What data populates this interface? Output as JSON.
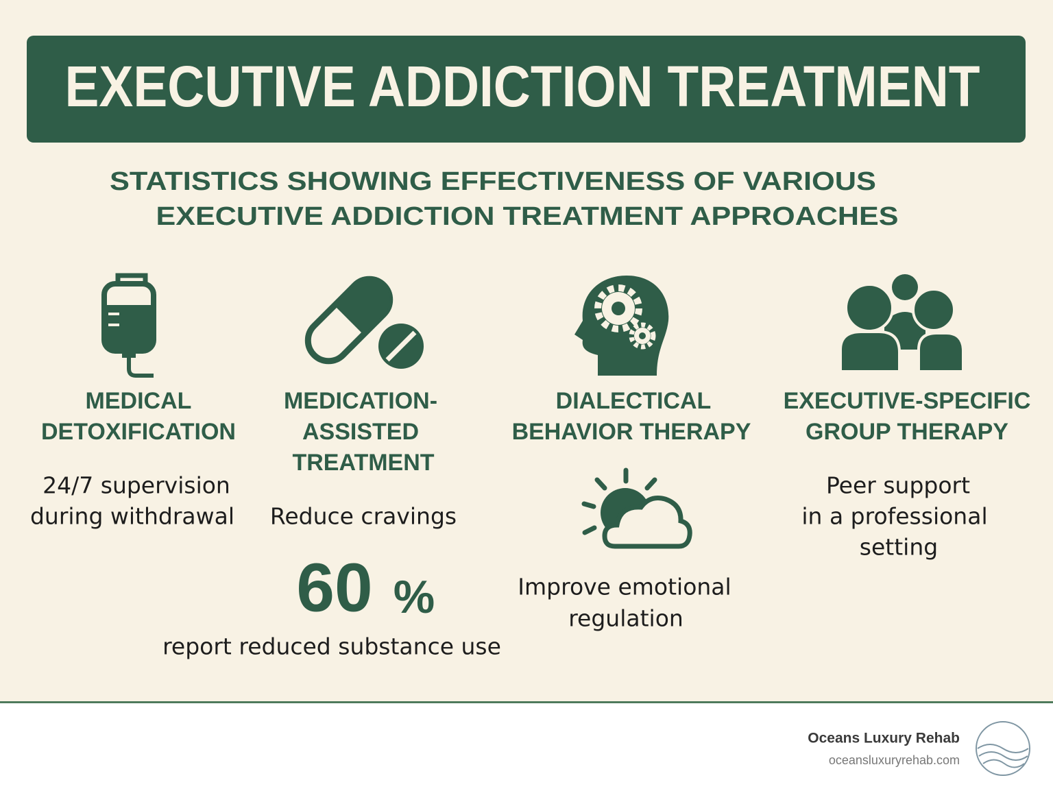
{
  "header": {
    "title": "EXECUTIVE ADDICTION TREATMENT"
  },
  "subtitle": [
    "STATISTICS SHOWING EFFECTIVENESS OF VARIOUS",
    "EXECUTIVE ADDICTION TREATMENT APPROACHES"
  ],
  "treatments": [
    {
      "title": [
        "MEDICAL",
        "DETOXIFICATION"
      ],
      "description": [
        "24/7 supervision",
        "during withdrawal"
      ]
    },
    {
      "title": [
        "MEDICATION-",
        "ASSISTED",
        "TREATMENT"
      ],
      "description": [
        "Reduce cravings"
      ],
      "stat": {
        "value": "60",
        "unit": "%",
        "label": "report reduced substance use"
      }
    },
    {
      "title": [
        "DIALECTICAL",
        "BEHAVIOR THERAPY"
      ],
      "description": [
        "Improve emotional",
        "regulation"
      ]
    },
    {
      "title": [
        "EXECUTIVE-SPECIFIC",
        "GROUP THERAPY"
      ],
      "description": [
        "Peer support",
        "in a professional",
        "setting"
      ]
    }
  ],
  "footer": {
    "brand": "Oceans Luxury Rehab",
    "url": "oceansluxuryrehab.com"
  }
}
